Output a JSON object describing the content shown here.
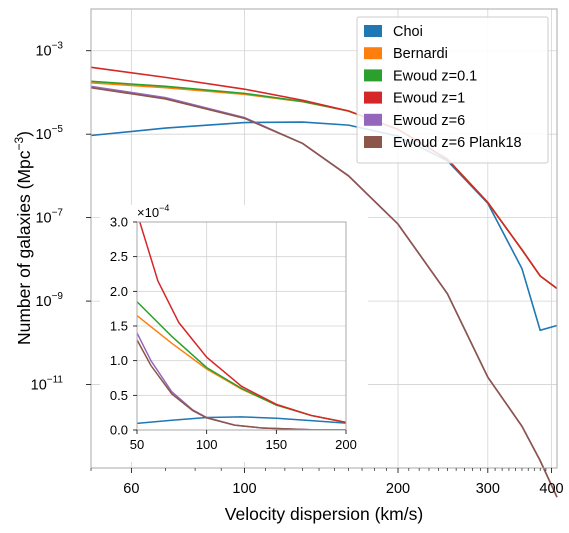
{
  "chart_data": [
    {
      "type": "line",
      "xlabel": "Velocity dispersion (km/s)",
      "ylabel": "Number of galaxies (Mpc",
      "ylabel_sup": "−3",
      "ylabel_close": ")",
      "xscale": "log",
      "yscale": "log",
      "xlim": [
        50,
        410
      ],
      "ylim": [
        1e-13,
        0.01
      ],
      "grid": true,
      "legend": "top-right",
      "x_ticks": [
        {
          "value": 60,
          "label": "60"
        },
        {
          "value": 100,
          "label": "100"
        },
        {
          "value": 200,
          "label": "200"
        },
        {
          "value": 300,
          "label": "300"
        },
        {
          "value": 400,
          "label": "400"
        }
      ],
      "y_ticks": [
        {
          "exp": -3,
          "base": "10",
          "sup": "−3"
        },
        {
          "exp": -5,
          "base": "10",
          "sup": "−5"
        },
        {
          "exp": -7,
          "base": "10",
          "sup": "−7"
        },
        {
          "exp": -9,
          "base": "10",
          "sup": "−9"
        },
        {
          "exp": -11,
          "base": "10",
          "sup": "−11"
        }
      ],
      "series": [
        {
          "name": "Choi",
          "color": "#1f77b4",
          "x": [
            50,
            70,
            100,
            130,
            160,
            200,
            250,
            300,
            350,
            380,
            410
          ],
          "y": [
            9.3e-06,
            1.4e-05,
            1.9e-05,
            1.95e-05,
            1.65e-05,
            9e-06,
            2.3e-06,
            2.2e-07,
            6e-09,
            2e-10,
            2.6e-10
          ]
        },
        {
          "name": "Bernardi",
          "color": "#ff7f0e",
          "x": [
            50,
            70,
            100,
            130,
            160,
            200,
            250,
            300,
            350,
            380,
            410
          ],
          "y": [
            0.00017,
            0.00013,
            9e-05,
            6e-05,
            3.6e-05,
            1.3e-05,
            2.5e-06,
            2.3e-07,
            1.7e-08,
            4e-09,
            2e-09
          ]
        },
        {
          "name": "Ewoud z=0.1",
          "color": "#2ca02c",
          "x": [
            50,
            70,
            100,
            130,
            160,
            200,
            250,
            300,
            350,
            380,
            410
          ],
          "y": [
            0.000185,
            0.00014,
            9.5e-05,
            6.1e-05,
            3.6e-05,
            1.3e-05,
            2.5e-06,
            2.3e-07,
            1.7e-08,
            4e-09,
            2e-09
          ]
        },
        {
          "name": "Ewoud z=1",
          "color": "#d62728",
          "x": [
            50,
            70,
            100,
            130,
            160,
            200,
            250,
            300,
            350,
            380,
            410
          ],
          "y": [
            0.0004,
            0.00023,
            0.00012,
            6.5e-05,
            3.6e-05,
            1.3e-05,
            2.5e-06,
            2.3e-07,
            1.7e-08,
            4e-09,
            2e-09
          ]
        },
        {
          "name": "Ewoud z=6",
          "color": "#9467bd",
          "x": [
            50,
            70,
            100,
            130,
            160,
            200,
            250,
            300,
            350,
            380,
            410
          ],
          "y": [
            0.00014,
            7.5e-05,
            2.5e-05,
            6e-06,
            1e-06,
            7e-08,
            1.5e-09,
            1.5e-11,
            1e-12,
            1.5e-13,
            2e-14
          ]
        },
        {
          "name": "Ewoud z=6 Plank18",
          "color": "#8c564b",
          "x": [
            50,
            70,
            100,
            130,
            160,
            200,
            250,
            300,
            350,
            380,
            410
          ],
          "y": [
            0.00013,
            7e-05,
            2.4e-05,
            6e-06,
            1e-06,
            7e-08,
            1.5e-09,
            1.5e-11,
            1e-12,
            1.5e-13,
            2e-14
          ]
        }
      ]
    },
    {
      "type": "line",
      "panel": "inset",
      "xlim": [
        50,
        200
      ],
      "ylim": [
        0,
        0.0003
      ],
      "grid": true,
      "scale_label": "×10",
      "scale_sup": "−4",
      "x_ticks": [
        {
          "value": 50,
          "label": "50"
        },
        {
          "value": 100,
          "label": "100"
        },
        {
          "value": 150,
          "label": "150"
        },
        {
          "value": 200,
          "label": "200"
        }
      ],
      "y_ticks": [
        {
          "value": 0,
          "label": "0.0"
        },
        {
          "value": 5e-05,
          "label": "0.5"
        },
        {
          "value": 0.0001,
          "label": "1.0"
        },
        {
          "value": 0.00015,
          "label": "1.5"
        },
        {
          "value": 0.0002,
          "label": "2.0"
        },
        {
          "value": 0.00025,
          "label": "2.5"
        },
        {
          "value": 0.0003,
          "label": "3.0"
        }
      ],
      "series": [
        {
          "name": "Choi",
          "color": "#1f77b4",
          "x": [
            50,
            75,
            100,
            125,
            150,
            175,
            200
          ],
          "y": [
            9.5e-06,
            1.4e-05,
            1.8e-05,
            1.9e-05,
            1.7e-05,
            1.35e-05,
            1e-05
          ]
        },
        {
          "name": "Bernardi",
          "color": "#ff7f0e",
          "x": [
            50,
            75,
            100,
            125,
            150,
            175,
            200
          ],
          "y": [
            0.000165,
            0.000125,
            8.8e-05,
            5.9e-05,
            3.6e-05,
            2.1e-05,
            1.1e-05
          ]
        },
        {
          "name": "Ewoud z=0.1",
          "color": "#2ca02c",
          "x": [
            50,
            75,
            100,
            125,
            150,
            175,
            200
          ],
          "y": [
            0.000185,
            0.000135,
            9e-05,
            6e-05,
            3.6e-05,
            2.1e-05,
            1.1e-05
          ]
        },
        {
          "name": "Ewoud z=1",
          "color": "#d62728",
          "x": [
            52,
            65,
            80,
            100,
            125,
            150,
            175,
            200
          ],
          "y": [
            0.0003,
            0.000215,
            0.000155,
            0.000105,
            6.3e-05,
            3.7e-05,
            2.1e-05,
            1.1e-05
          ]
        },
        {
          "name": "Ewoud z=6",
          "color": "#9467bd",
          "x": [
            50,
            60,
            75,
            90,
            100,
            120,
            140,
            175,
            200
          ],
          "y": [
            0.00014,
            0.0001,
            5.5e-05,
            2.9e-05,
            1.8e-05,
            7e-06,
            2.8e-06,
            4e-07,
            1e-07
          ]
        },
        {
          "name": "Ewoud z=6 Plank18",
          "color": "#8c564b",
          "x": [
            50,
            60,
            75,
            90,
            100,
            120,
            140,
            175,
            200
          ],
          "y": [
            0.00013,
            9.3e-05,
            5.2e-05,
            2.8e-05,
            1.75e-05,
            7e-06,
            2.8e-06,
            4e-07,
            1e-07
          ]
        }
      ]
    }
  ]
}
